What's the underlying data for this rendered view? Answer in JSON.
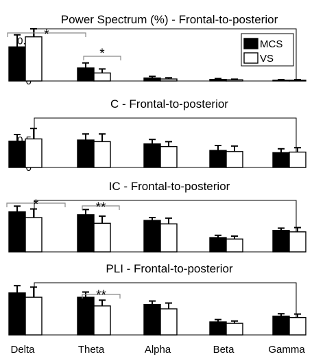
{
  "chart_data": [
    {
      "type": "bar",
      "title": "Power Spectrum (%) - Frontal-to-posterior",
      "categories": [
        "Delta",
        "Theta",
        "Alpha",
        "Beta",
        "Gamma"
      ],
      "ylim": [
        0,
        0.26
      ],
      "yticks": [
        "0",
        "0.1",
        "0.2"
      ],
      "ytick_values": [
        0,
        0.1,
        0.2
      ],
      "legend": {
        "position": "top-right",
        "entries": [
          "MCS",
          "VS"
        ]
      },
      "series": [
        {
          "name": "MCS",
          "color": "#000000",
          "values": [
            0.17,
            0.065,
            0.015,
            0.008,
            0.004
          ],
          "errors": [
            0.06,
            0.025,
            0.008,
            0.004,
            0.003
          ]
        },
        {
          "name": "VS",
          "color": "#ffffff",
          "values": [
            0.22,
            0.04,
            0.01,
            0.006,
            0.004
          ],
          "errors": [
            0.04,
            0.02,
            0.006,
            0.003,
            0.003
          ]
        }
      ],
      "annotations": [
        {
          "category": "Delta",
          "label": "*"
        },
        {
          "category": "Theta",
          "label": "*"
        }
      ]
    },
    {
      "type": "bar",
      "title": "C - Frontal-to-posterior",
      "categories": [
        "Delta",
        "Theta",
        "Alpha",
        "Beta",
        "Gamma"
      ],
      "ylim": [
        0,
        0.9
      ],
      "yticks": [
        "0",
        "0.5"
      ],
      "ytick_values": [
        0,
        0.5
      ],
      "series": [
        {
          "name": "MCS",
          "color": "#000000",
          "values": [
            0.48,
            0.5,
            0.43,
            0.31,
            0.27
          ],
          "errors": [
            0.12,
            0.11,
            0.08,
            0.09,
            0.07
          ]
        },
        {
          "name": "VS",
          "color": "#ffffff",
          "values": [
            0.52,
            0.47,
            0.38,
            0.29,
            0.28
          ],
          "errors": [
            0.19,
            0.14,
            0.09,
            0.1,
            0.08
          ]
        }
      ],
      "annotations": []
    },
    {
      "type": "bar",
      "title": "IC - Frontal-to-posterior",
      "categories": [
        "Delta",
        "Theta",
        "Alpha",
        "Beta",
        "Gamma"
      ],
      "ylim": [
        0,
        0.18
      ],
      "yticks": [
        "0.1"
      ],
      "ytick_values": [
        0.1
      ],
      "series": [
        {
          "name": "MCS",
          "color": "#000000",
          "values": [
            0.14,
            0.13,
            0.11,
            0.05,
            0.075
          ],
          "errors": [
            0.02,
            0.018,
            0.01,
            0.008,
            0.008
          ]
        },
        {
          "name": "VS",
          "color": "#ffffff",
          "values": [
            0.12,
            0.1,
            0.098,
            0.045,
            0.07
          ],
          "errors": [
            0.03,
            0.025,
            0.02,
            0.01,
            0.015
          ]
        }
      ],
      "annotations": [
        {
          "category": "Delta",
          "label": "*"
        },
        {
          "category": "Theta",
          "label": "**"
        }
      ]
    },
    {
      "type": "bar",
      "title": "PLI - Frontal-to-posterior",
      "categories": [
        "Delta",
        "Theta",
        "Alpha",
        "Beta",
        "Gamma"
      ],
      "xticklabels_shown": true,
      "ylim": [
        0,
        0.18
      ],
      "yticks": [
        "0.1"
      ],
      "ytick_values": [
        0.1
      ],
      "series": [
        {
          "name": "MCS",
          "color": "#000000",
          "values": [
            0.145,
            0.13,
            0.105,
            0.045,
            0.065
          ],
          "errors": [
            0.025,
            0.018,
            0.012,
            0.008,
            0.008
          ]
        },
        {
          "name": "VS",
          "color": "#ffffff",
          "values": [
            0.13,
            0.1,
            0.09,
            0.04,
            0.06
          ],
          "errors": [
            0.035,
            0.02,
            0.02,
            0.008,
            0.012
          ]
        }
      ],
      "annotations": [
        {
          "category": "Theta",
          "label": "**"
        }
      ]
    }
  ]
}
